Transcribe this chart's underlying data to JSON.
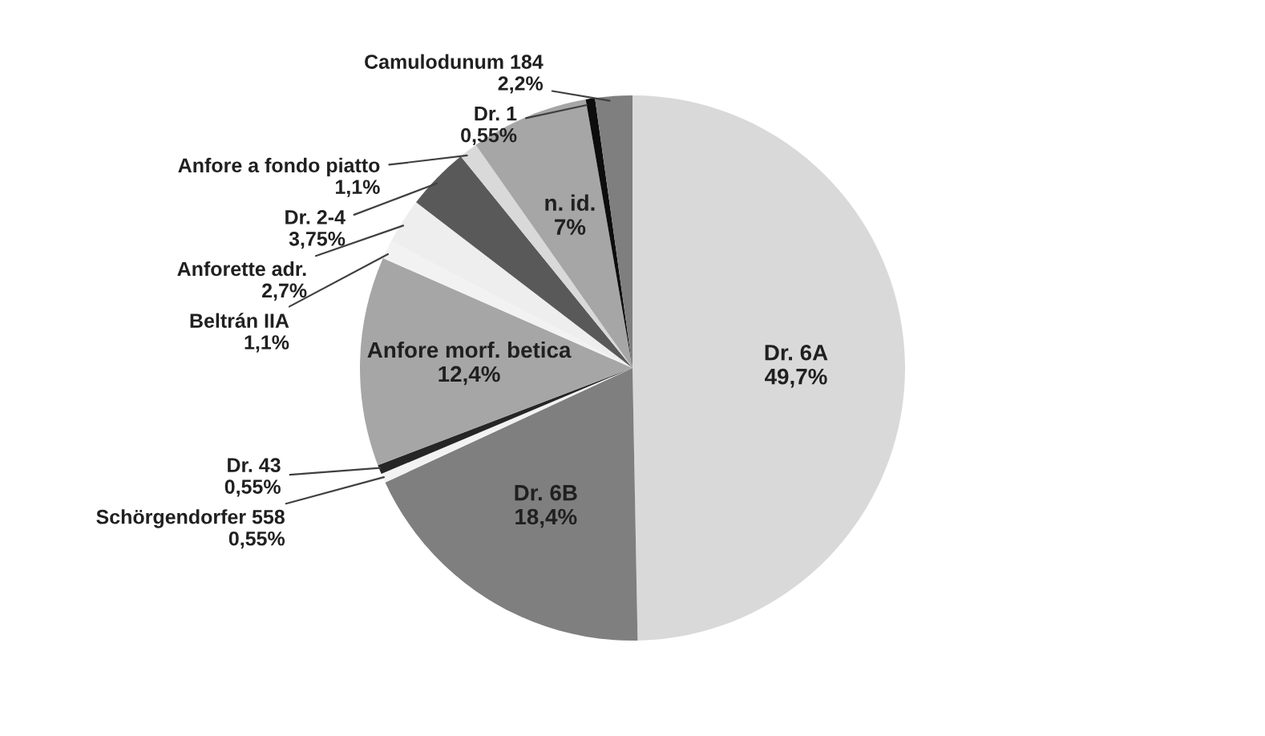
{
  "chart_data": {
    "type": "pie",
    "categories": [
      "Dr. 6A",
      "Dr. 6B",
      "Schörgendorfer 558",
      "Dr. 43",
      "Anfore morf. betica",
      "Beltrán IIA",
      "Anforette adr.",
      "Dr. 2-4",
      "Anfore a fondo piatto",
      "n. id.",
      "Dr. 1",
      "Camulodunum 184"
    ],
    "values": [
      49.7,
      18.4,
      0.55,
      0.55,
      12.4,
      1.1,
      2.7,
      3.75,
      1.1,
      7,
      0.55,
      2.2
    ],
    "value_labels": [
      "49,7%",
      "18,4%",
      "0,55%",
      "0,55%",
      "12,4%",
      "1,1%",
      "2,7%",
      "3,75%",
      "1,1%",
      "7%",
      "0,55%",
      "2,2%"
    ],
    "colors": [
      "#d9d9d9",
      "#7f7f7f",
      "#f2f2f2",
      "#262626",
      "#a6a6a6",
      "#f2f2f2",
      "#eeeeee",
      "#595959",
      "#d9d9d9",
      "#a6a6a6",
      "#0d0d0d",
      "#7f7f7f"
    ],
    "legend": false
  }
}
